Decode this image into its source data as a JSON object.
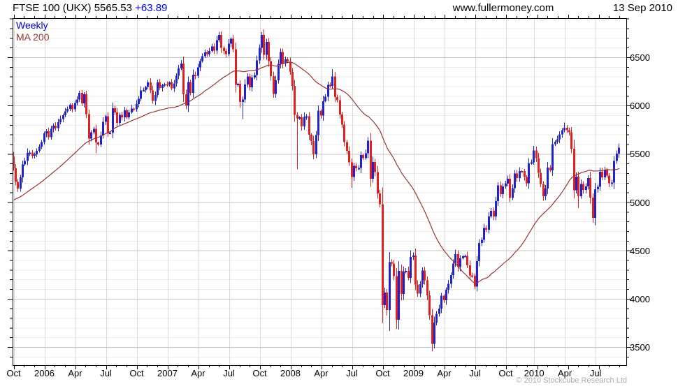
{
  "header": {
    "title": "FTSE 100 (UKX) 5565.53",
    "change": "+63.89",
    "site": "www.fullermoney.com",
    "date": "13 Sep 2010"
  },
  "legend": {
    "weekly": "Weekly",
    "ma": "MA 200"
  },
  "footer": {
    "copyright": "© 2010 Stockcube Research Ltd"
  },
  "chart_data": {
    "type": "candlestick",
    "instrument": "FTSE 100 (UKX)",
    "timeframe": "Weekly",
    "overlay": "MA 200",
    "last_close": 5565.53,
    "last_change": 63.89,
    "x_axis": {
      "labels": [
        {
          "text": "Oct",
          "week": 0
        },
        {
          "text": "2006",
          "week": 13
        },
        {
          "text": "Apr",
          "week": 26
        },
        {
          "text": "Jul",
          "week": 39
        },
        {
          "text": "Oct",
          "week": 52
        },
        {
          "text": "2007",
          "week": 65
        },
        {
          "text": "Apr",
          "week": 78
        },
        {
          "text": "Jul",
          "week": 91
        },
        {
          "text": "Oct",
          "week": 104
        },
        {
          "text": "2008",
          "week": 117
        },
        {
          "text": "Apr",
          "week": 130
        },
        {
          "text": "Jul",
          "week": 143
        },
        {
          "text": "Oct",
          "week": 156
        },
        {
          "text": "2009",
          "week": 169
        },
        {
          "text": "Apr",
          "week": 182
        },
        {
          "text": "Jul",
          "week": 195
        },
        {
          "text": "Oct",
          "week": 208
        },
        {
          "text": "2010",
          "week": 220
        },
        {
          "text": "Apr",
          "week": 233
        },
        {
          "text": "Jul",
          "week": 246
        }
      ],
      "months_shown": 60
    },
    "y_axis": {
      "min": 3312,
      "max": 6905,
      "major_tick_values": [
        6500,
        6000,
        5500,
        5000,
        4500,
        4000,
        3500
      ],
      "minor_step": 100
    },
    "series": {
      "first_open": 5470,
      "closes": [
        5350,
        5210,
        5140,
        5255,
        5390,
        5425,
        5510,
        5515,
        5480,
        5495,
        5530,
        5575,
        5620,
        5711,
        5735,
        5672,
        5760,
        5791,
        5765,
        5828,
        5860,
        5899,
        5940,
        5965,
        6008,
        5963,
        6026,
        6062,
        6132,
        6023,
        6116,
        5912,
        5657,
        5723,
        5760,
        5617,
        5597,
        5692,
        5833,
        5889,
        5711,
        5719,
        5974,
        5928,
        5820,
        5904,
        5878,
        5949,
        5879,
        5929,
        5969,
        5961,
        6015,
        6070,
        6155,
        6160,
        6192,
        6239,
        6157,
        6049,
        6109,
        6240,
        6183,
        6211,
        6221,
        6220,
        6240,
        6180,
        6228,
        6310,
        6383,
        6434,
        6116,
        6000,
        6245,
        6130,
        6318,
        6308,
        6397,
        6462,
        6511,
        6552,
        6533,
        6565,
        6611,
        6570,
        6676,
        6732,
        6597,
        6567,
        6532,
        6642,
        6690,
        6585,
        6215,
        6224,
        6038,
        6064,
        6220,
        6303,
        6191,
        6289,
        6316,
        6466,
        6596,
        6730,
        6527,
        6661,
        6461,
        6305,
        6121,
        6262,
        6432,
        6554,
        6434,
        6479,
        6457,
        6348,
        6202,
        5902,
        5869,
        5880,
        5784,
        5881,
        5889,
        5696,
        5632,
        5495,
        5693,
        5947,
        5895,
        6046,
        6091,
        6216,
        6205,
        6303,
        6087,
        6054,
        5906,
        5803,
        5621,
        5530,
        5413,
        5262,
        5376,
        5352,
        5355,
        5489,
        5455,
        5506,
        5637,
        5241,
        5417,
        5311,
        5089,
        4980,
        3932,
        4063,
        3883,
        4377,
        4365,
        4233,
        3781,
        4288,
        4049,
        4280,
        4287,
        4217,
        4434,
        4448,
        4147,
        4052,
        4149,
        4291,
        4189,
        4034,
        3830,
        3531,
        3754,
        3843,
        3898,
        4030,
        3984,
        4093,
        4156,
        4243,
        4365,
        4463,
        4331,
        4417,
        4439,
        4442,
        4346,
        4241,
        4236,
        4127,
        4389,
        4577,
        4608,
        4732,
        4714,
        4851,
        4909,
        4852,
        5011,
        5172,
        5082,
        5161,
        5190,
        5243,
        5044,
        5143,
        5296,
        5251,
        5323,
        5322,
        5261,
        5196,
        5402,
        5413,
        5534,
        5455,
        5303,
        5189,
        5061,
        5142,
        5358,
        5328,
        5599,
        5626,
        5650,
        5703,
        5744,
        5771,
        5744,
        5724,
        5553,
        5123,
        5263,
        5063,
        5188,
        5126,
        5164,
        5251,
        5046,
        4838,
        5133,
        5158,
        5313,
        5258,
        5332,
        5275,
        5195,
        5201,
        5428,
        5501,
        5565
      ],
      "wick_lows": {
        "2": 5130,
        "35": 5506,
        "73": 5975,
        "97": 5860,
        "120": 5340,
        "143": 5150,
        "156": 3870,
        "159": 3665,
        "162": 3720,
        "177": 3460,
        "239": 4940,
        "245": 4790
      },
      "wick_highs": {
        "87": 6751,
        "135": 6376,
        "233": 5825
      }
    },
    "ma": {
      "window": 40,
      "pre_start": 4680,
      "pre_end": 5330
    },
    "colors": {
      "up": "#2121cd",
      "down": "#e22020",
      "ma": "#993333",
      "grid_minor": "#ececec",
      "grid_major": "#c6c6c6",
      "grid_vertical": "#d9d9d9",
      "axis": "#000000"
    }
  }
}
